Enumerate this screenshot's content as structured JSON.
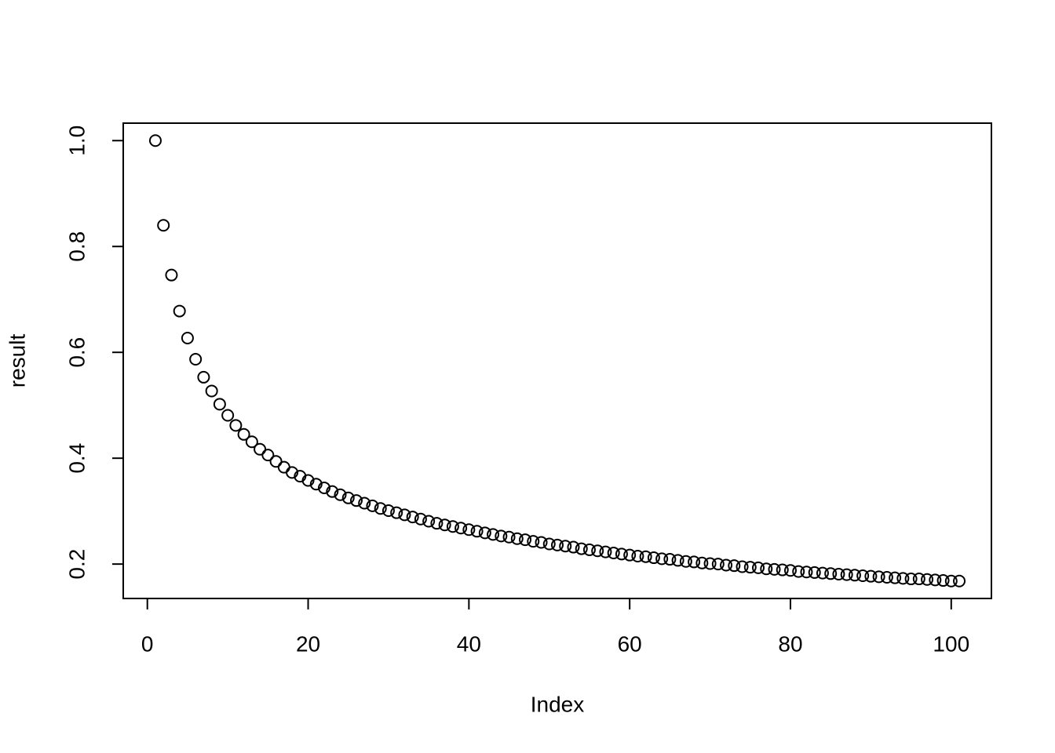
{
  "chart_data": {
    "type": "scatter",
    "x_label": "Index",
    "y_label": "result",
    "x": [
      1,
      2,
      3,
      4,
      5,
      6,
      7,
      8,
      9,
      10,
      11,
      12,
      13,
      14,
      15,
      16,
      17,
      18,
      19,
      20,
      21,
      22,
      23,
      24,
      25,
      26,
      27,
      28,
      29,
      30,
      31,
      32,
      33,
      34,
      35,
      36,
      37,
      38,
      39,
      40,
      41,
      42,
      43,
      44,
      45,
      46,
      47,
      48,
      49,
      50,
      51,
      52,
      53,
      54,
      55,
      56,
      57,
      58,
      59,
      60,
      61,
      62,
      63,
      64,
      65,
      66,
      67,
      68,
      69,
      70,
      71,
      72,
      73,
      74,
      75,
      76,
      77,
      78,
      79,
      80,
      81,
      82,
      83,
      84,
      85,
      86,
      87,
      88,
      89,
      90,
      91,
      92,
      93,
      94,
      95,
      96,
      97,
      98,
      99,
      100,
      101
    ],
    "values": [
      1.0,
      0.84,
      0.746,
      0.678,
      0.627,
      0.587,
      0.553,
      0.527,
      0.502,
      0.481,
      0.462,
      0.445,
      0.431,
      0.417,
      0.406,
      0.394,
      0.383,
      0.373,
      0.366,
      0.358,
      0.351,
      0.344,
      0.337,
      0.331,
      0.325,
      0.32,
      0.315,
      0.31,
      0.305,
      0.301,
      0.297,
      0.293,
      0.289,
      0.285,
      0.281,
      0.277,
      0.274,
      0.271,
      0.268,
      0.265,
      0.262,
      0.259,
      0.256,
      0.253,
      0.251,
      0.248,
      0.246,
      0.243,
      0.241,
      0.238,
      0.236,
      0.234,
      0.232,
      0.229,
      0.227,
      0.225,
      0.223,
      0.221,
      0.219,
      0.217,
      0.215,
      0.214,
      0.212,
      0.21,
      0.209,
      0.207,
      0.205,
      0.204,
      0.202,
      0.201,
      0.2,
      0.198,
      0.197,
      0.195,
      0.194,
      0.193,
      0.191,
      0.19,
      0.189,
      0.188,
      0.186,
      0.185,
      0.184,
      0.183,
      0.182,
      0.181,
      0.18,
      0.179,
      0.178,
      0.177,
      0.176,
      0.175,
      0.174,
      0.173,
      0.172,
      0.172,
      0.171,
      0.17,
      0.169,
      0.168,
      0.168
    ],
    "color": "#000000",
    "xlim": [
      -3,
      105
    ],
    "xticks": [
      0,
      20,
      40,
      60,
      80,
      100
    ],
    "ylim": [
      0.135,
      1.033
    ],
    "yticks": [
      0.2,
      0.4,
      0.6,
      0.8,
      {
        "value": 1,
        "label": "1.0"
      }
    ],
    "grid": false
  }
}
